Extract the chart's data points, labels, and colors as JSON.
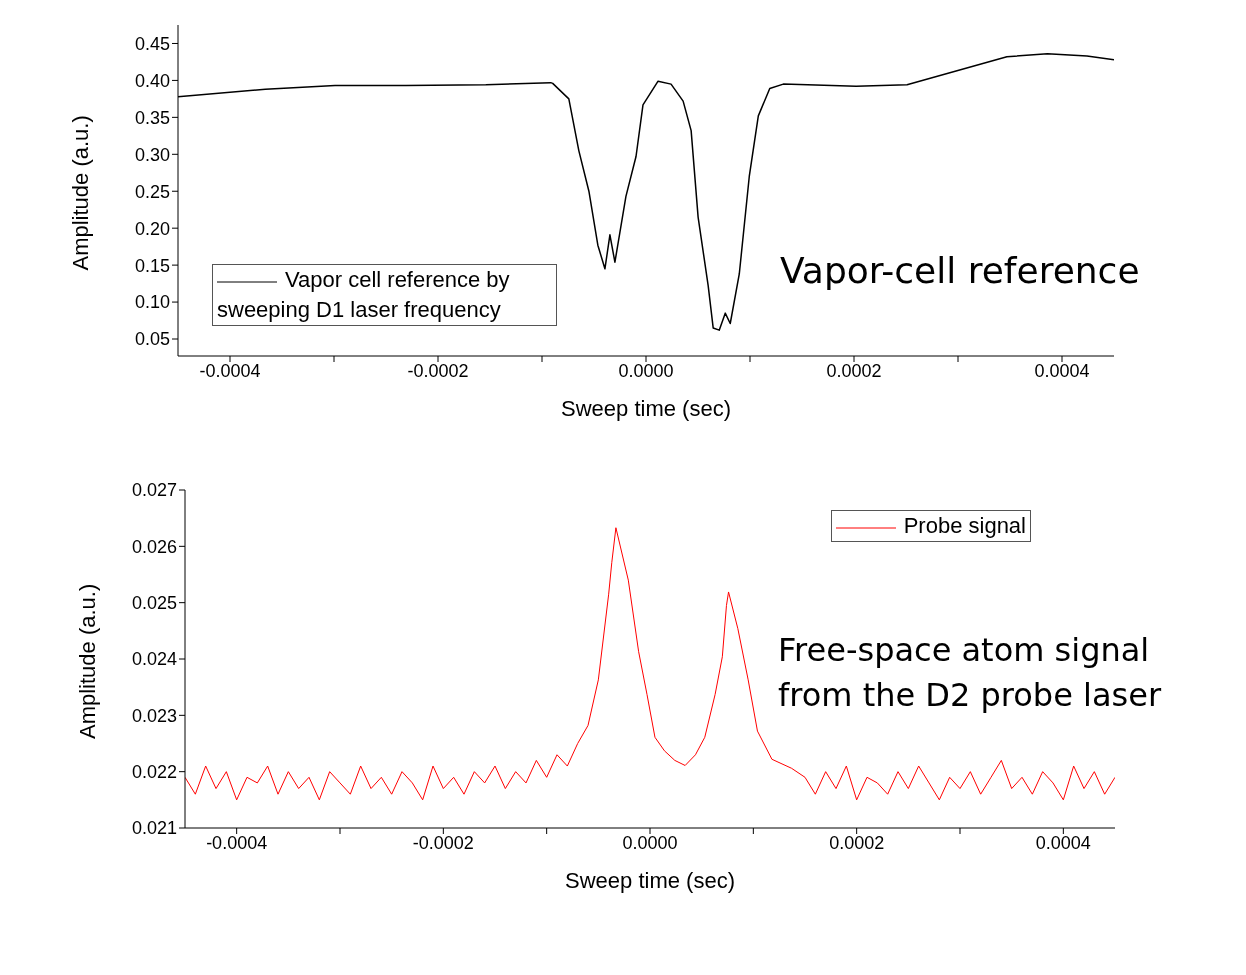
{
  "chart_data": [
    {
      "type": "line",
      "xlabel": "Sweep time (sec)",
      "ylabel": "Amplitude (a.u.)",
      "annotations": [
        "Vapor-cell reference"
      ],
      "legend": "bottom left",
      "xlim": [
        -0.00045,
        0.00045
      ],
      "ylim": [
        0.027,
        0.475
      ],
      "xticks": [
        -0.0004,
        {
          "value": -0.0003,
          "label": null
        },
        -0.0002,
        {
          "value": -0.0001,
          "label": null
        },
        {
          "value": 0,
          "label": "0.0000"
        },
        {
          "value": 0.0001,
          "label": null
        },
        0.0002,
        {
          "value": 0.0003,
          "label": null
        },
        0.0004
      ],
      "yticks": [
        0.05,
        {
          "value": 0.1,
          "label": "0.10"
        },
        0.15,
        {
          "value": 0.2,
          "label": "0.20"
        },
        0.25,
        {
          "value": 0.3,
          "label": "0.30"
        },
        0.35,
        {
          "value": 0.4,
          "label": "0.40"
        },
        0.45
      ],
      "x": [
        -0.00045,
        -0.000366,
        -0.000299,
        -0.000231,
        -0.000154,
        -9.16e-05,
        -8.97e-05,
        -7.42e-05,
        -6.46e-05,
        -5.49e-05,
        -4.63e-05,
        -3.95e-05,
        -3.47e-05,
        -2.99e-05,
        -1.93e-05,
        -9.6e-06,
        -2.9e-06,
        1.16e-05,
        2.41e-05,
        3.57e-05,
        4.34e-05,
        5.01e-05,
        5.98e-05,
        6.46e-05,
        7.04e-05,
        7.62e-05,
        8.1e-05,
        8.97e-05,
        9.93e-05,
        0.000108,
        0.000119,
        0.000132,
        0.000202,
        0.000251,
        0.000347,
        0.000386,
        0.000424,
        0.00045
      ],
      "series": [
        {
          "name": "Vapor cell reference by sweeping D1 laser frequency",
          "color": "#000000",
          "values": [
            0.378,
            0.388,
            0.393,
            0.393,
            0.394,
            0.397,
            0.396,
            0.375,
            0.305,
            0.25,
            0.177,
            0.145,
            0.191,
            0.154,
            0.243,
            0.297,
            0.367,
            0.399,
            0.395,
            0.372,
            0.332,
            0.215,
            0.122,
            0.065,
            0.062,
            0.085,
            0.071,
            0.138,
            0.27,
            0.352,
            0.389,
            0.395,
            0.392,
            0.394,
            0.432,
            0.436,
            0.433,
            0.428
          ]
        }
      ]
    },
    {
      "type": "line",
      "xlabel": "Sweep time (sec)",
      "ylabel": "Amplitude (a.u.)",
      "annotations": [
        "Free-space atom signal from the D2 probe laser"
      ],
      "legend": "top right",
      "xlim": [
        -0.00045,
        0.00045
      ],
      "ylim": [
        0.021,
        0.027
      ],
      "xticks": [
        -0.0004,
        {
          "value": -0.0003,
          "label": null
        },
        -0.0002,
        {
          "value": -0.0001,
          "label": null
        },
        {
          "value": 0,
          "label": "0.0000"
        },
        {
          "value": 0.0001,
          "label": null
        },
        0.0002,
        {
          "value": 0.0003,
          "label": null
        },
        0.0004
      ],
      "yticks": [
        0.021,
        0.022,
        0.023,
        0.024,
        0.025,
        0.026,
        0.027
      ],
      "x": [
        -0.00045,
        -0.00044,
        -0.00043,
        -0.00042,
        -0.00041,
        -0.0004,
        -0.00039,
        -0.00038,
        -0.00037,
        -0.00036,
        -0.00035,
        -0.00034,
        -0.00033,
        -0.00032,
        -0.00031,
        -0.0003,
        -0.00029,
        -0.00028,
        -0.00027,
        -0.00026,
        -0.00025,
        -0.00024,
        -0.00023,
        -0.00022,
        -0.00021,
        -0.0002,
        -0.00019,
        -0.00018,
        -0.00017,
        -0.00016,
        -0.00015,
        -0.00014,
        -0.00013,
        -0.00012,
        -0.00011,
        -0.0001,
        -9e-05,
        -8e-05,
        -7e-05,
        -6e-05,
        -5e-05,
        -4e-05,
        -3.7e-05,
        -3.3e-05,
        -2.1e-05,
        -1.1e-05,
        -2.9e-06,
        4.8e-06,
        1.4e-05,
        2.4e-05,
        3.4e-05,
        4.4e-05,
        5.3e-05,
        6.3e-05,
        7e-05,
        7.4e-05,
        7.6e-05,
        8.5e-05,
        9.5e-05,
        0.000104,
        0.000118,
        0.000137,
        0.00015,
        0.00016,
        0.00017,
        0.00018,
        0.00019,
        0.0002,
        0.00021,
        0.00022,
        0.00023,
        0.00024,
        0.00025,
        0.00026,
        0.00027,
        0.00028,
        0.00029,
        0.0003,
        0.00031,
        0.00032,
        0.00033,
        0.00034,
        0.00035,
        0.00036,
        0.00037,
        0.00038,
        0.00039,
        0.0004,
        0.00041,
        0.00042,
        0.00043,
        0.00044,
        0.00045
      ],
      "series": [
        {
          "name": "Probe signal",
          "color": "#ff0000",
          "values": [
            0.0219,
            0.0216,
            0.0221,
            0.0217,
            0.022,
            0.0215,
            0.0219,
            0.0218,
            0.0221,
            0.0216,
            0.022,
            0.0217,
            0.0219,
            0.0215,
            0.022,
            0.0218,
            0.0216,
            0.0221,
            0.0217,
            0.0219,
            0.0216,
            0.022,
            0.0218,
            0.0215,
            0.0221,
            0.0217,
            0.0219,
            0.0216,
            0.022,
            0.0218,
            0.0221,
            0.0217,
            0.022,
            0.0218,
            0.0222,
            0.0219,
            0.0223,
            0.0221,
            0.0225,
            0.02282,
            0.02363,
            0.02515,
            0.02571,
            0.02633,
            0.0254,
            0.02413,
            0.02337,
            0.02261,
            0.02237,
            0.0222,
            0.02211,
            0.0223,
            0.02261,
            0.02337,
            0.02404,
            0.02495,
            0.02519,
            0.02454,
            0.02363,
            0.02272,
            0.02222,
            0.02206,
            0.0219,
            0.0216,
            0.022,
            0.0217,
            0.0221,
            0.0215,
            0.0219,
            0.0218,
            0.0216,
            0.022,
            0.0217,
            0.0221,
            0.0218,
            0.0215,
            0.0219,
            0.0217,
            0.022,
            0.0216,
            0.0219,
            0.0222,
            0.0217,
            0.0219,
            0.0216,
            0.022,
            0.0218,
            0.0215,
            0.0221,
            0.0217,
            0.022,
            0.0216,
            0.0219
          ]
        }
      ]
    }
  ]
}
